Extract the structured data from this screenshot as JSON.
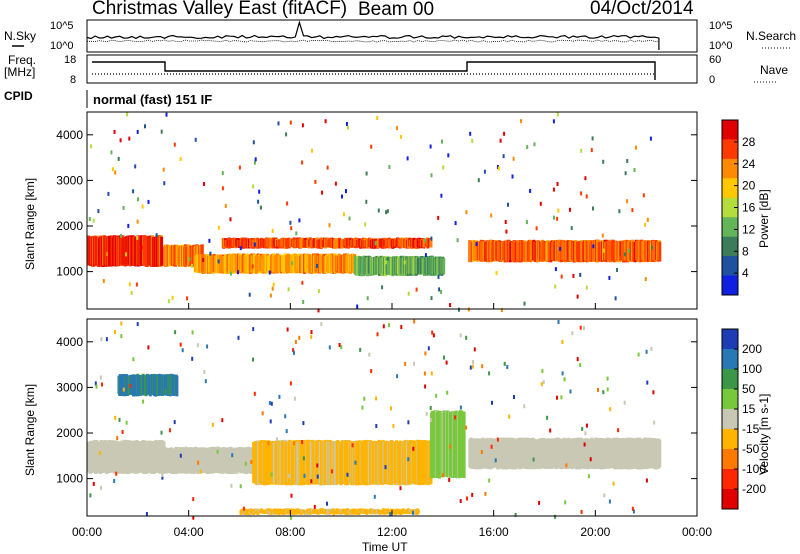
{
  "header": {
    "station": "Christmas Valley East (fitACF)",
    "beam": "Beam 00",
    "date": "04/Oct/2014"
  },
  "left_labels": {
    "nsky": "N.Sky",
    "freq": "Freq.",
    "freq_unit": "[MHz]",
    "cpid": "CPID"
  },
  "right_labels": {
    "nsearch": "N.Search",
    "nave": "Nave"
  },
  "noise_panel": {
    "left_ticks": [
      "10^5",
      "10^0"
    ],
    "right_ticks": [
      "10^5",
      "10^0"
    ]
  },
  "freq_panel": {
    "left_ticks": [
      "18",
      "8"
    ],
    "right_ticks": [
      "60",
      "0"
    ]
  },
  "cpid_text": "normal (fast) 151 IF",
  "colorbars": {
    "power": {
      "label": "Power [dB]",
      "ticks": [
        "28",
        "24",
        "20",
        "16",
        "12",
        "8",
        "4"
      ],
      "colors": [
        "#e00000",
        "#ff3a00",
        "#ff8a00",
        "#ffc800",
        "#b4dc3c",
        "#64b45a",
        "#3c7c5a",
        "#2050a0",
        "#1020e0"
      ]
    },
    "velocity": {
      "label": "Velocity [m s-1]",
      "ticks": [
        "200",
        "100",
        "50",
        "15",
        "-15",
        "-50",
        "-100",
        "-200"
      ],
      "colors": [
        "#1e3cb4",
        "#2878b4",
        "#3c9648",
        "#78c83c",
        "#c8c8b4",
        "#ffb400",
        "#ff7800",
        "#ff2800",
        "#e00000"
      ]
    }
  },
  "chart_data": [
    {
      "type": "heatmap",
      "title": "Power",
      "ylabel": "Slant Range [km]",
      "xlabel": "Time UT",
      "y_ticks": [
        "4000",
        "3000",
        "2000",
        "1000"
      ],
      "x_ticks": [
        "00:00",
        "04:00",
        "08:00",
        "12:00",
        "16:00",
        "20:00",
        "00:00"
      ],
      "xlim": [
        "00:00",
        "24:00"
      ],
      "ylim": [
        180,
        4500
      ],
      "colorbar": "Power [dB]",
      "bands": [
        {
          "t0": 0.0,
          "t1": 2.9,
          "r0": 1100,
          "r1": 1800,
          "value": 28
        },
        {
          "t0": 3.0,
          "t1": 4.5,
          "r0": 1100,
          "r1": 1600,
          "value": 24
        },
        {
          "t0": 4.2,
          "t1": 10.5,
          "r0": 950,
          "r1": 1400,
          "value": 22
        },
        {
          "t0": 5.3,
          "t1": 13.5,
          "r0": 1500,
          "r1": 1750,
          "value": 26
        },
        {
          "t0": 10.5,
          "t1": 14.0,
          "r0": 900,
          "r1": 1350,
          "value": 12
        },
        {
          "t0": 15.0,
          "t1": 22.5,
          "r0": 1200,
          "r1": 1700,
          "value": 25
        }
      ]
    },
    {
      "type": "heatmap",
      "title": "Velocity",
      "ylabel": "Slant Range [km]",
      "xlabel": "Time UT",
      "y_ticks": [
        "4000",
        "3000",
        "2000",
        "1000"
      ],
      "x_ticks": [
        "00:00",
        "04:00",
        "08:00",
        "12:00",
        "16:00",
        "20:00",
        "00:00"
      ],
      "xlim": [
        "00:00",
        "24:00"
      ],
      "ylim": [
        180,
        4500
      ],
      "colorbar": "Velocity [m s-1]",
      "bands": [
        {
          "t0": 0.0,
          "t1": 3.0,
          "r0": 1100,
          "r1": 1850,
          "value": 0
        },
        {
          "t0": 3.0,
          "t1": 7.0,
          "r0": 1100,
          "r1": 1700,
          "value": 0
        },
        {
          "t0": 6.5,
          "t1": 13.5,
          "r0": 850,
          "r1": 1850,
          "value": -40
        },
        {
          "t0": 6.0,
          "t1": 13.0,
          "r0": 200,
          "r1": 350,
          "value": -40
        },
        {
          "t0": 13.5,
          "t1": 14.8,
          "r0": 1000,
          "r1": 2500,
          "value": 40
        },
        {
          "t0": 15.0,
          "t1": 22.5,
          "r0": 1200,
          "r1": 1900,
          "value": 0
        },
        {
          "t0": 1.2,
          "t1": 3.5,
          "r0": 2800,
          "r1": 3300,
          "value": 150
        }
      ]
    }
  ]
}
